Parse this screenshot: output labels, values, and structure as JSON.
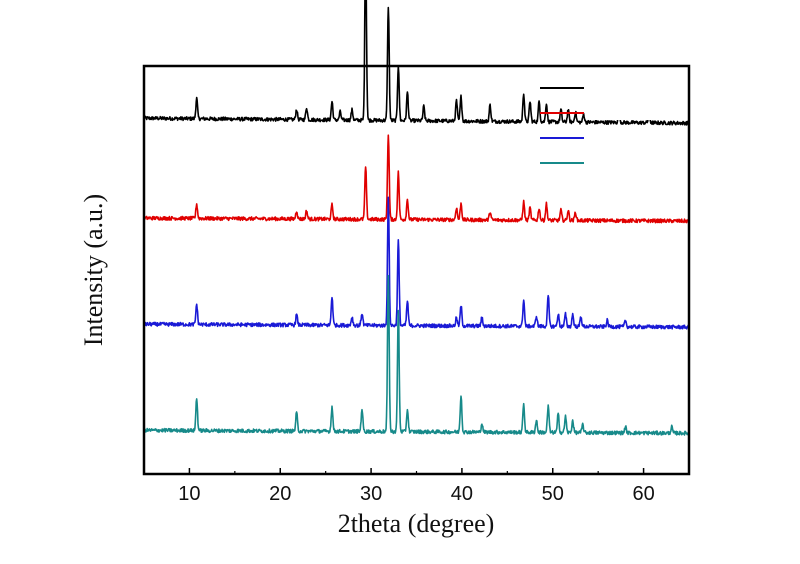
{
  "chart_data": {
    "type": "line",
    "title": "",
    "xlabel": "2theta (degree)",
    "ylabel": "Intensity (a.u.)",
    "xlim": [
      5,
      65
    ],
    "xticks": [
      10,
      20,
      30,
      40,
      50,
      60
    ],
    "xtick_labels": [
      "10",
      "20",
      "30",
      "40",
      "50",
      "60"
    ],
    "y_ticks_labeled": false,
    "grid": false,
    "legend_position": "top-right",
    "legend_labels_legible": false,
    "series": [
      {
        "color": "#000000",
        "baseline": 0.86,
        "peaks": [
          [
            10.8,
            0.05
          ],
          [
            21.8,
            0.025
          ],
          [
            22.9,
            0.03
          ],
          [
            25.7,
            0.045
          ],
          [
            26.6,
            0.02
          ],
          [
            27.9,
            0.025
          ],
          [
            29.4,
            0.43
          ],
          [
            31.9,
            0.28
          ],
          [
            33.0,
            0.135
          ],
          [
            34.0,
            0.07
          ],
          [
            35.8,
            0.035
          ],
          [
            39.4,
            0.05
          ],
          [
            39.9,
            0.06
          ],
          [
            43.1,
            0.04
          ],
          [
            46.8,
            0.07
          ],
          [
            47.5,
            0.05
          ],
          [
            48.5,
            0.05
          ],
          [
            49.3,
            0.045
          ],
          [
            50.9,
            0.03
          ],
          [
            51.7,
            0.03
          ],
          [
            52.5,
            0.025
          ],
          [
            53.4,
            0.02
          ],
          [
            57.3,
            0.02
          ],
          [
            60.6,
            0.02
          ]
        ]
      },
      {
        "color": "#e00000",
        "baseline": 0.62,
        "peaks": [
          [
            10.8,
            0.035
          ],
          [
            21.8,
            0.02
          ],
          [
            22.9,
            0.02
          ],
          [
            25.7,
            0.035
          ],
          [
            29.4,
            0.13
          ],
          [
            31.9,
            0.21
          ],
          [
            33.0,
            0.115
          ],
          [
            34.0,
            0.05
          ],
          [
            39.4,
            0.03
          ],
          [
            39.9,
            0.04
          ],
          [
            43.1,
            0.02
          ],
          [
            46.8,
            0.045
          ],
          [
            47.5,
            0.03
          ],
          [
            48.5,
            0.03
          ],
          [
            49.3,
            0.04
          ],
          [
            50.9,
            0.025
          ],
          [
            51.7,
            0.025
          ],
          [
            52.5,
            0.02
          ]
        ]
      },
      {
        "color": "#1a1ad6",
        "baseline": 0.36,
        "peaks": [
          [
            10.8,
            0.05
          ],
          [
            21.8,
            0.025
          ],
          [
            25.7,
            0.07
          ],
          [
            27.9,
            0.02
          ],
          [
            29.0,
            0.03
          ],
          [
            31.9,
            0.31
          ],
          [
            33.0,
            0.21
          ],
          [
            34.0,
            0.06
          ],
          [
            39.4,
            0.02
          ],
          [
            39.9,
            0.05
          ],
          [
            42.2,
            0.02
          ],
          [
            46.8,
            0.065
          ],
          [
            48.2,
            0.025
          ],
          [
            49.5,
            0.075
          ],
          [
            50.6,
            0.03
          ],
          [
            51.4,
            0.03
          ],
          [
            52.2,
            0.03
          ],
          [
            53.1,
            0.025
          ],
          [
            56.0,
            0.015
          ],
          [
            58.0,
            0.015
          ]
        ]
      },
      {
        "color": "#178a8a",
        "baseline": 0.1,
        "peaks": [
          [
            10.8,
            0.08
          ],
          [
            21.8,
            0.045
          ],
          [
            25.7,
            0.06
          ],
          [
            29.0,
            0.055
          ],
          [
            31.9,
            0.38
          ],
          [
            33.0,
            0.3
          ],
          [
            34.0,
            0.055
          ],
          [
            39.9,
            0.09
          ],
          [
            42.2,
            0.02
          ],
          [
            46.8,
            0.07
          ],
          [
            48.2,
            0.03
          ],
          [
            49.5,
            0.065
          ],
          [
            50.6,
            0.045
          ],
          [
            51.4,
            0.04
          ],
          [
            52.2,
            0.03
          ],
          [
            53.3,
            0.02
          ],
          [
            58.0,
            0.015
          ],
          [
            63.1,
            0.015
          ]
        ]
      }
    ]
  }
}
